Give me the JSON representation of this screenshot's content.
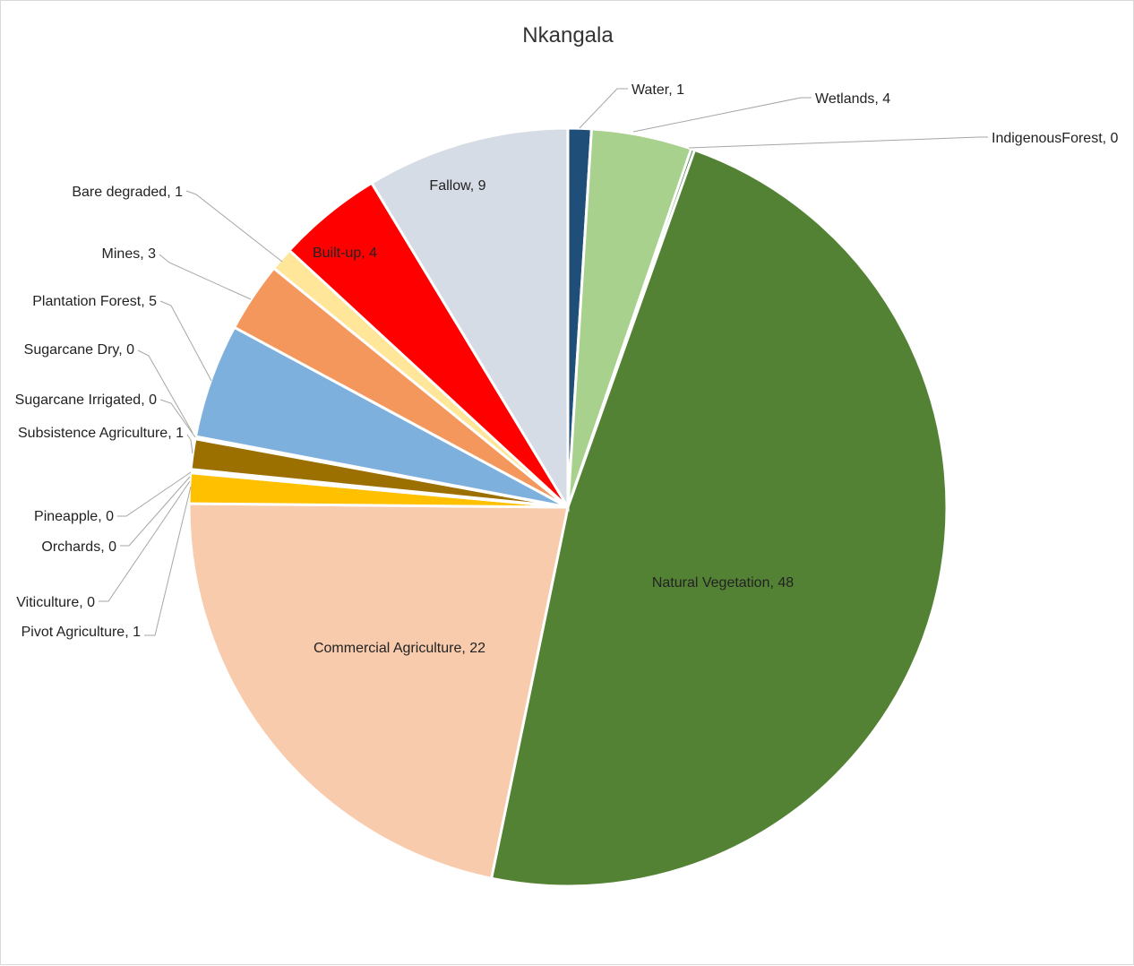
{
  "chart_data": {
    "type": "pie",
    "title": "Nkangala",
    "slices": [
      {
        "label": "Water",
        "value": 1.0,
        "display": "Water, 1",
        "color": "#1f4e79"
      },
      {
        "label": "Wetlands",
        "value": 4.3,
        "display": "Wetlands, 4",
        "color": "#a9d18e"
      },
      {
        "label": "IndigenousForest",
        "value": 0.15,
        "display": "IndigenousForest, 0",
        "color": "#2e7d32"
      },
      {
        "label": "Natural Vegetation",
        "value": 48,
        "display": "Natural Vegetation, 48",
        "color": "#548235"
      },
      {
        "label": "Commercial Agriculture",
        "value": 22,
        "display": "Commercial Agriculture, 22",
        "color": "#f8cbad"
      },
      {
        "label": "Pivot  Agriculture",
        "value": 1.3,
        "display": "Pivot  Agriculture, 1",
        "color": "#ffc000"
      },
      {
        "label": "Viticulture",
        "value": 0.05,
        "display": "Viticulture, 0",
        "color": "#c9c9c9"
      },
      {
        "label": "Orchards",
        "value": 0.05,
        "display": "Orchards, 0",
        "color": "#8faadc"
      },
      {
        "label": "Pineapple",
        "value": 0.05,
        "display": "Pineapple, 0",
        "color": "#ffd966"
      },
      {
        "label": "Subsistence Agriculture",
        "value": 1.3,
        "display": "Subsistence Agriculture, 1",
        "color": "#9c7000"
      },
      {
        "label": "Sugarcane Irrigated",
        "value": 0.05,
        "display": "Sugarcane Irrigated, 0",
        "color": "#5b9bd5"
      },
      {
        "label": "Sugarcane Dry",
        "value": 0.05,
        "display": "Sugarcane Dry, 0",
        "color": "#a5a5a5"
      },
      {
        "label": "Plantation Forest",
        "value": 4.9,
        "display": "Plantation Forest, 5",
        "color": "#7eb0de"
      },
      {
        "label": "Mines",
        "value": 3.0,
        "display": "Mines, 3",
        "color": "#f4975d"
      },
      {
        "label": "Bare degraded",
        "value": 1.0,
        "display": "Bare degraded, 1",
        "color": "#ffe699"
      },
      {
        "label": "Built-up",
        "value": 4.5,
        "display": "Built-up, 4",
        "color": "#ff0000"
      },
      {
        "label": "Fallow",
        "value": 8.7,
        "display": "Fallow, 9",
        "color": "#d6dce5"
      }
    ]
  }
}
